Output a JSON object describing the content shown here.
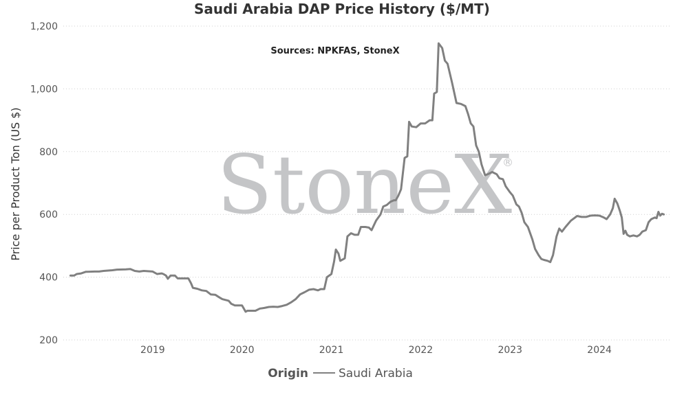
{
  "chart_data": {
    "type": "line",
    "title": "Saudi Arabia DAP Price History ($/MT)",
    "annotation": "Sources: NPKFAS, StoneX",
    "ylabel": "Price per Product Ton (US $)",
    "xlabel": "",
    "ylim": [
      200,
      1200
    ],
    "xlim": [
      2018.0,
      2024.8
    ],
    "y_ticks": [
      200,
      400,
      600,
      800,
      1000,
      1200
    ],
    "y_tick_labels": [
      "200",
      "400",
      "600",
      "800",
      "1,000",
      "1,200"
    ],
    "x_ticks": [
      2019,
      2020,
      2021,
      2022,
      2023,
      2024
    ],
    "x_tick_labels": [
      "2019",
      "2020",
      "2021",
      "2022",
      "2023",
      "2024"
    ],
    "grid": true,
    "legend": {
      "title": "Origin",
      "position": "bottom"
    },
    "watermark": {
      "text": "StoneX",
      "mark": "®"
    },
    "series": [
      {
        "name": "Saudi Arabia",
        "color": "#808080",
        "points": [
          [
            2018.08,
            405
          ],
          [
            2018.12,
            405
          ],
          [
            2018.15,
            410
          ],
          [
            2018.2,
            412
          ],
          [
            2018.25,
            417
          ],
          [
            2018.35,
            418
          ],
          [
            2018.4,
            418
          ],
          [
            2018.45,
            420
          ],
          [
            2018.55,
            422
          ],
          [
            2018.6,
            424
          ],
          [
            2018.7,
            425
          ],
          [
            2018.75,
            426
          ],
          [
            2018.8,
            420
          ],
          [
            2018.85,
            418
          ],
          [
            2018.9,
            420
          ],
          [
            2019.0,
            418
          ],
          [
            2019.05,
            410
          ],
          [
            2019.1,
            412
          ],
          [
            2019.12,
            410
          ],
          [
            2019.15,
            405
          ],
          [
            2019.17,
            395
          ],
          [
            2019.2,
            405
          ],
          [
            2019.25,
            405
          ],
          [
            2019.28,
            396
          ],
          [
            2019.35,
            396
          ],
          [
            2019.4,
            396
          ],
          [
            2019.43,
            380
          ],
          [
            2019.45,
            366
          ],
          [
            2019.5,
            363
          ],
          [
            2019.55,
            358
          ],
          [
            2019.6,
            356
          ],
          [
            2019.65,
            345
          ],
          [
            2019.7,
            344
          ],
          [
            2019.75,
            335
          ],
          [
            2019.78,
            330
          ],
          [
            2019.85,
            325
          ],
          [
            2019.88,
            315
          ],
          [
            2019.92,
            310
          ],
          [
            2019.95,
            310
          ],
          [
            2020.0,
            310
          ],
          [
            2020.02,
            300
          ],
          [
            2020.04,
            290
          ],
          [
            2020.06,
            293
          ],
          [
            2020.1,
            293
          ],
          [
            2020.15,
            293
          ],
          [
            2020.2,
            300
          ],
          [
            2020.25,
            302
          ],
          [
            2020.3,
            305
          ],
          [
            2020.35,
            306
          ],
          [
            2020.4,
            305
          ],
          [
            2020.45,
            308
          ],
          [
            2020.5,
            312
          ],
          [
            2020.55,
            320
          ],
          [
            2020.6,
            330
          ],
          [
            2020.65,
            345
          ],
          [
            2020.7,
            352
          ],
          [
            2020.75,
            360
          ],
          [
            2020.8,
            362
          ],
          [
            2020.85,
            358
          ],
          [
            2020.88,
            362
          ],
          [
            2020.92,
            362
          ],
          [
            2020.95,
            400
          ],
          [
            2021.0,
            410
          ],
          [
            2021.03,
            450
          ],
          [
            2021.05,
            488
          ],
          [
            2021.08,
            475
          ],
          [
            2021.1,
            452
          ],
          [
            2021.15,
            460
          ],
          [
            2021.18,
            530
          ],
          [
            2021.22,
            540
          ],
          [
            2021.26,
            535
          ],
          [
            2021.3,
            535
          ],
          [
            2021.33,
            560
          ],
          [
            2021.38,
            560
          ],
          [
            2021.42,
            558
          ],
          [
            2021.45,
            550
          ],
          [
            2021.5,
            580
          ],
          [
            2021.55,
            600
          ],
          [
            2021.58,
            625
          ],
          [
            2021.62,
            630
          ],
          [
            2021.66,
            640
          ],
          [
            2021.7,
            645
          ],
          [
            2021.72,
            645
          ],
          [
            2021.75,
            660
          ],
          [
            2021.78,
            680
          ],
          [
            2021.82,
            780
          ],
          [
            2021.85,
            785
          ],
          [
            2021.87,
            895
          ],
          [
            2021.9,
            880
          ],
          [
            2021.95,
            878
          ],
          [
            2022.0,
            890
          ],
          [
            2022.05,
            890
          ],
          [
            2022.1,
            900
          ],
          [
            2022.13,
            900
          ],
          [
            2022.15,
            985
          ],
          [
            2022.18,
            990
          ],
          [
            2022.2,
            1145
          ],
          [
            2022.24,
            1130
          ],
          [
            2022.27,
            1090
          ],
          [
            2022.3,
            1080
          ],
          [
            2022.35,
            1020
          ],
          [
            2022.4,
            955
          ],
          [
            2022.45,
            952
          ],
          [
            2022.5,
            945
          ],
          [
            2022.53,
            920
          ],
          [
            2022.56,
            890
          ],
          [
            2022.59,
            880
          ],
          [
            2022.62,
            820
          ],
          [
            2022.65,
            800
          ],
          [
            2022.68,
            760
          ],
          [
            2022.72,
            725
          ],
          [
            2022.75,
            728
          ],
          [
            2022.8,
            735
          ],
          [
            2022.85,
            728
          ],
          [
            2022.88,
            715
          ],
          [
            2022.92,
            712
          ],
          [
            2022.95,
            690
          ],
          [
            2023.0,
            670
          ],
          [
            2023.03,
            660
          ],
          [
            2023.07,
            632
          ],
          [
            2023.1,
            625
          ],
          [
            2023.13,
            605
          ],
          [
            2023.16,
            575
          ],
          [
            2023.2,
            560
          ],
          [
            2023.25,
            520
          ],
          [
            2023.28,
            490
          ],
          [
            2023.32,
            470
          ],
          [
            2023.35,
            458
          ],
          [
            2023.38,
            455
          ],
          [
            2023.42,
            452
          ],
          [
            2023.45,
            448
          ],
          [
            2023.48,
            470
          ],
          [
            2023.52,
            530
          ],
          [
            2023.55,
            555
          ],
          [
            2023.58,
            545
          ],
          [
            2023.62,
            560
          ],
          [
            2023.68,
            580
          ],
          [
            2023.75,
            595
          ],
          [
            2023.8,
            592
          ],
          [
            2023.85,
            592
          ],
          [
            2023.9,
            596
          ],
          [
            2023.95,
            597
          ],
          [
            2024.0,
            596
          ],
          [
            2024.05,
            590
          ],
          [
            2024.08,
            585
          ],
          [
            2024.12,
            600
          ],
          [
            2024.15,
            620
          ],
          [
            2024.17,
            650
          ],
          [
            2024.2,
            635
          ],
          [
            2024.23,
            610
          ],
          [
            2024.25,
            590
          ],
          [
            2024.27,
            538
          ],
          [
            2024.29,
            548
          ],
          [
            2024.31,
            535
          ],
          [
            2024.34,
            530
          ],
          [
            2024.38,
            533
          ],
          [
            2024.42,
            530
          ],
          [
            2024.45,
            535
          ],
          [
            2024.48,
            545
          ],
          [
            2024.52,
            550
          ],
          [
            2024.55,
            575
          ],
          [
            2024.58,
            585
          ],
          [
            2024.62,
            590
          ],
          [
            2024.64,
            588
          ],
          [
            2024.66,
            608
          ],
          [
            2024.68,
            596
          ],
          [
            2024.7,
            602
          ],
          [
            2024.72,
            600
          ]
        ]
      }
    ]
  }
}
